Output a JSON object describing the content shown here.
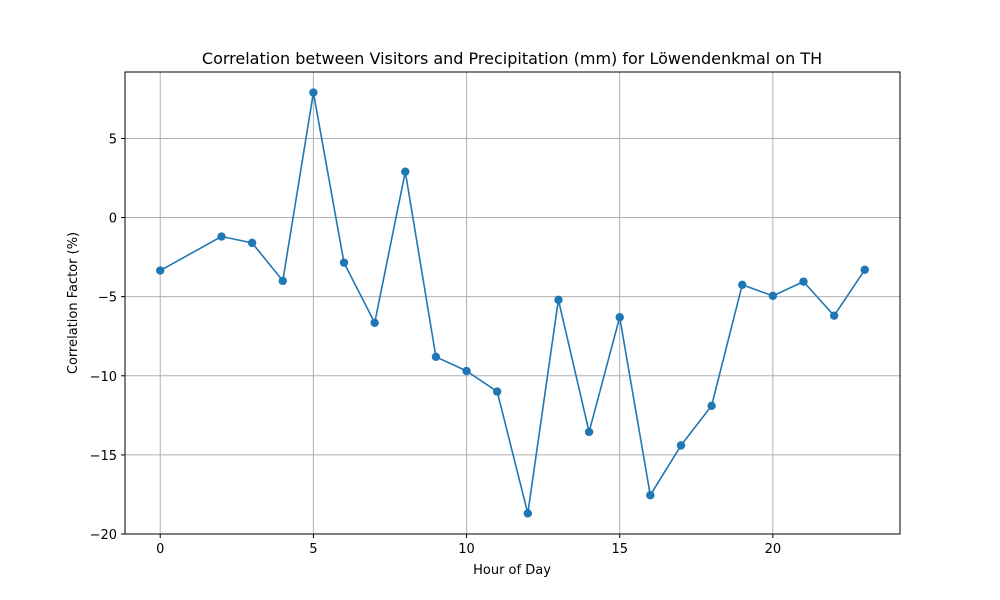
{
  "chart_data": {
    "type": "line",
    "title": "Correlation between Visitors and Precipitation (mm) for Löwendenkmal on TH",
    "xlabel": "Hour of Day",
    "ylabel": "Correlation Factor (%)",
    "xlim": [
      -1.15,
      24.15
    ],
    "ylim": [
      -20,
      9.2
    ],
    "xticks": [
      0,
      5,
      10,
      15,
      20
    ],
    "yticks": [
      -20,
      -15,
      -10,
      -5,
      0,
      5
    ],
    "grid": true,
    "color": "#1f77b4",
    "series": [
      {
        "x": [
          0,
          2,
          3,
          4,
          5,
          6,
          7,
          8,
          9,
          10,
          11,
          12,
          13,
          14,
          15,
          16,
          17,
          18,
          19,
          20,
          21,
          22,
          23
        ],
        "y": [
          -3.35,
          -1.2,
          -1.6,
          -4.0,
          7.9,
          -2.85,
          -6.65,
          2.9,
          -8.8,
          -9.7,
          -11.0,
          -18.7,
          -5.2,
          -13.55,
          -6.3,
          -17.55,
          -14.4,
          -11.9,
          -4.25,
          -4.95,
          -4.05,
          -6.2,
          -3.3
        ]
      }
    ]
  }
}
